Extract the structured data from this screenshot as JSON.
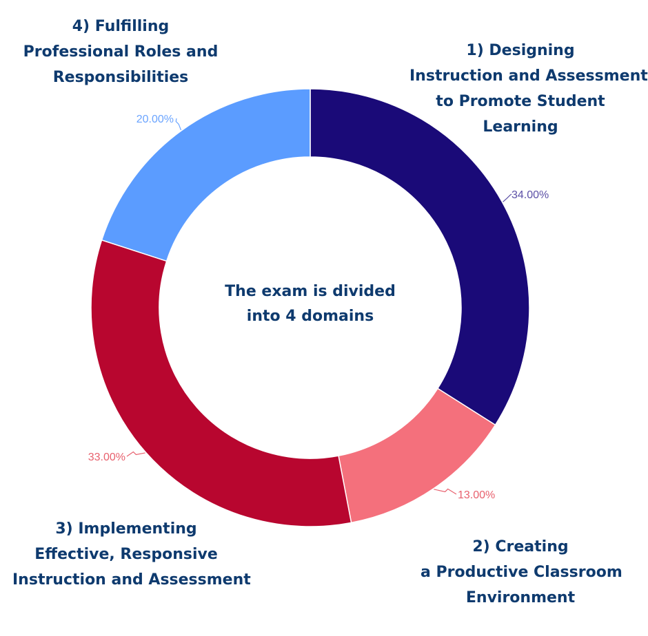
{
  "center_text": [
    "The exam is divided",
    "into 4 domains"
  ],
  "domains": [
    {
      "lines": [
        "1) Designing",
        "Instruction and Assessment",
        "to Promote Student",
        "Learning"
      ]
    },
    {
      "lines": [
        "2) Creating",
        "a Productive Classroom",
        "Environment"
      ]
    },
    {
      "lines": [
        "3) Implementing",
        "Effective, Responsive",
        "Instruction and Assessment"
      ]
    },
    {
      "lines": [
        "4) Fulfilling",
        "Professional Roles and",
        "Responsibilities"
      ]
    }
  ],
  "chart_data": {
    "type": "pie",
    "donut": true,
    "start_angle": "12 o'clock",
    "direction": "clockwise",
    "slices": [
      {
        "label": "1) Designing Instruction and Assessment to Promote Student Learning",
        "value": 34,
        "value_label": "34.00%",
        "color": "#1a0a78",
        "label_color": "#5b4fa6"
      },
      {
        "label": "2) Creating a Productive Classroom Environment",
        "value": 13,
        "value_label": "13.00%",
        "color": "#f4707c",
        "label_color": "#e8606d"
      },
      {
        "label": "3) Implementing Effective, Responsive Instruction and Assessment",
        "value": 33,
        "value_label": "33.00%",
        "color": "#b8062f",
        "label_color": "#e8606d"
      },
      {
        "label": "4) Fulfilling Professional Roles and Responsibilities",
        "value": 20,
        "value_label": "20.00%",
        "color": "#5b9cff",
        "label_color": "#6aa4ff"
      }
    ]
  }
}
